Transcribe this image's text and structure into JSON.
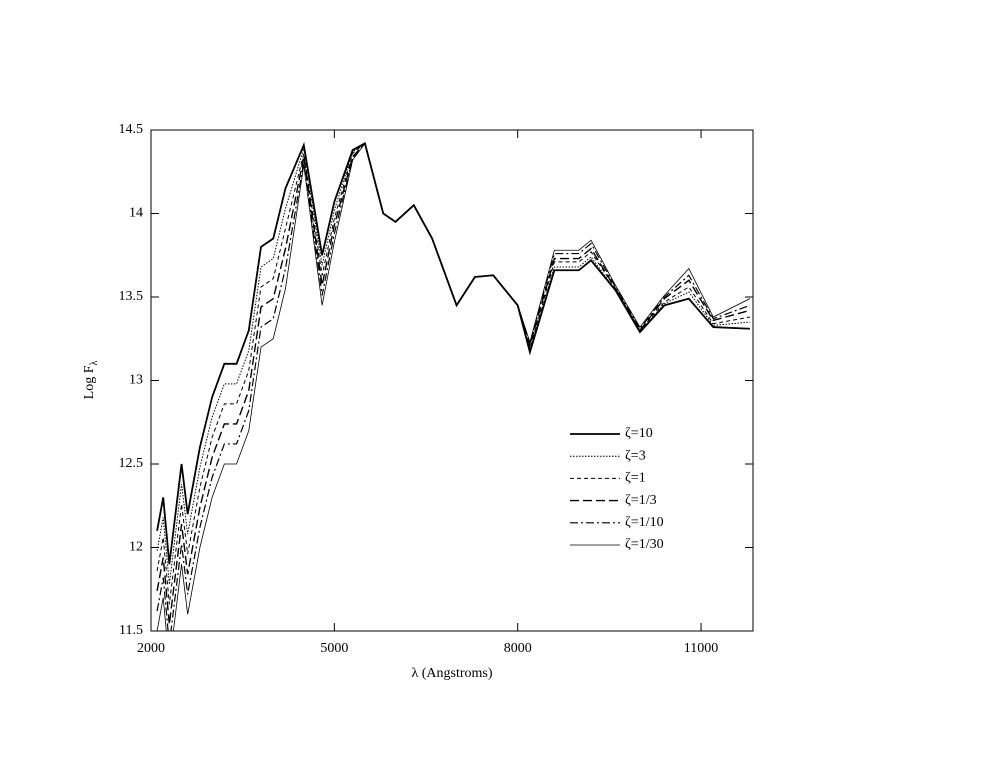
{
  "chart_data": {
    "type": "line",
    "xlabel": "λ (Angstroms)",
    "ylabel": "Log F",
    "ylabel_sub": "λ",
    "x": [
      2100,
      2200,
      2300,
      2500,
      2600,
      2800,
      3000,
      3200,
      3400,
      3600,
      3800,
      4000,
      4200,
      4500,
      4800,
      5000,
      5300,
      5500,
      5800,
      6000,
      6300,
      6600,
      7000,
      7300,
      7600,
      8000,
      8200,
      8600,
      9000,
      9200,
      9600,
      10000,
      10400,
      10800,
      11200,
      11800
    ],
    "xlim": [
      2000,
      11850
    ],
    "xticks": [
      2000,
      5000,
      8000,
      11000
    ],
    "ylim": [
      11.5,
      14.5
    ],
    "yticks": [
      11.5,
      12,
      12.5,
      13,
      13.5,
      14,
      14.5
    ],
    "legend": "lower right",
    "series": [
      {
        "name": "ζ=10",
        "color": "#000000",
        "dash": "solid",
        "width": 1.8,
        "values": [
          12.1,
          12.3,
          11.9,
          12.5,
          12.2,
          12.6,
          12.9,
          13.1,
          13.1,
          13.3,
          13.8,
          13.85,
          14.15,
          14.41,
          13.75,
          14.07,
          14.38,
          14.42,
          14.0,
          13.95,
          14.05,
          13.85,
          13.45,
          13.62,
          13.63,
          13.45,
          13.17,
          13.66,
          13.66,
          13.72,
          13.54,
          13.29,
          13.45,
          13.49,
          13.32,
          13.31
        ]
      },
      {
        "name": "ζ=3",
        "color": "#000000",
        "dash": "dotted",
        "width": 1,
        "values": [
          11.98,
          12.18,
          11.78,
          12.38,
          12.08,
          12.48,
          12.78,
          12.98,
          12.98,
          13.18,
          13.68,
          13.73,
          14.03,
          14.39,
          13.69,
          14.02,
          14.37,
          14.42,
          14.0,
          13.95,
          14.05,
          13.85,
          13.45,
          13.62,
          13.63,
          13.45,
          13.18,
          13.68,
          13.68,
          13.74,
          13.54,
          13.29,
          13.46,
          13.53,
          13.33,
          13.35
        ]
      },
      {
        "name": "ζ=1",
        "color": "#000000",
        "dash": "dashed",
        "width": 1,
        "values": [
          11.86,
          12.06,
          11.66,
          12.26,
          11.96,
          12.36,
          12.66,
          12.86,
          12.86,
          13.06,
          13.56,
          13.61,
          13.91,
          14.36,
          13.63,
          13.97,
          14.36,
          14.42,
          14.0,
          13.95,
          14.05,
          13.85,
          13.45,
          13.62,
          13.63,
          13.45,
          13.19,
          13.71,
          13.71,
          13.77,
          13.55,
          13.3,
          13.47,
          13.56,
          13.34,
          13.38
        ]
      },
      {
        "name": "ζ=1/3",
        "color": "#000000",
        "dash": "longdash",
        "width": 1.4,
        "values": [
          11.74,
          11.94,
          11.54,
          12.14,
          11.84,
          12.24,
          12.54,
          12.74,
          12.74,
          12.94,
          13.44,
          13.49,
          13.79,
          14.34,
          13.57,
          13.93,
          14.34,
          14.42,
          14.0,
          13.95,
          14.05,
          13.85,
          13.45,
          13.62,
          13.63,
          13.45,
          13.21,
          13.73,
          13.73,
          13.79,
          13.55,
          13.3,
          13.49,
          13.6,
          13.36,
          13.42
        ]
      },
      {
        "name": "ζ=1/10",
        "color": "#000000",
        "dash": "dashdot",
        "width": 1.2,
        "values": [
          11.62,
          11.82,
          11.42,
          12.02,
          11.72,
          12.12,
          12.42,
          12.62,
          12.62,
          12.82,
          13.32,
          13.37,
          13.67,
          14.31,
          13.51,
          13.88,
          14.33,
          14.42,
          14.0,
          13.95,
          14.05,
          13.85,
          13.45,
          13.62,
          13.63,
          13.45,
          13.22,
          13.76,
          13.76,
          13.82,
          13.56,
          13.31,
          13.5,
          13.63,
          13.37,
          13.45
        ]
      },
      {
        "name": "ζ=1/30",
        "color": "#000000",
        "dash": "solid",
        "width": 0.8,
        "values": [
          11.5,
          11.7,
          11.3,
          11.9,
          11.6,
          12.0,
          12.3,
          12.5,
          12.5,
          12.7,
          13.2,
          13.25,
          13.55,
          14.29,
          13.45,
          13.83,
          14.32,
          14.42,
          14.0,
          13.95,
          14.05,
          13.85,
          13.45,
          13.62,
          13.63,
          13.45,
          13.23,
          13.78,
          13.78,
          13.84,
          13.57,
          13.32,
          13.51,
          13.67,
          13.38,
          13.49
        ]
      }
    ]
  }
}
